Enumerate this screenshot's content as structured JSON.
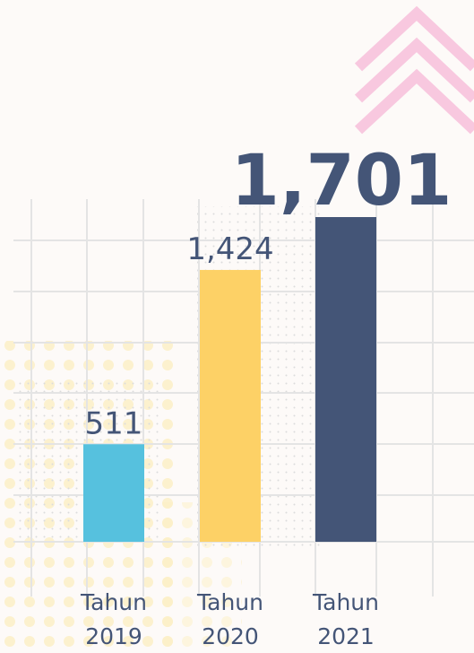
{
  "chart_data": {
    "type": "bar",
    "categories": [
      "Tahun 2019",
      "Tahun 2020",
      "Tahun 2021"
    ],
    "values": [
      511,
      1424,
      1701
    ],
    "value_labels": [
      "511",
      "1,424",
      "1,701"
    ],
    "colors": [
      "#56c1de",
      "#fdd166",
      "#445577"
    ]
  }
}
